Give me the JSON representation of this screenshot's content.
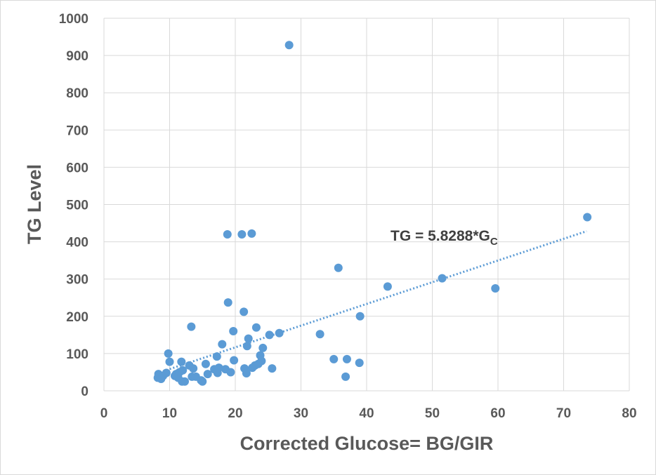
{
  "chart_data": {
    "type": "scatter",
    "title": "",
    "xlabel": "Corrected Glucose= BG/GIR",
    "ylabel": "TG Level",
    "xlim": [
      0,
      80
    ],
    "ylim": [
      0,
      1000
    ],
    "x_ticks": [
      0,
      10,
      20,
      30,
      40,
      50,
      60,
      70,
      80
    ],
    "y_ticks": [
      0,
      100,
      200,
      300,
      400,
      500,
      600,
      700,
      800,
      900,
      1000
    ],
    "grid": true,
    "legend": "none",
    "marker_color": "#5b9bd5",
    "trendline": {
      "type": "linear-through-origin",
      "slope": 5.8288,
      "x_range": [
        9,
        73.5
      ],
      "style": "dotted",
      "color": "#5b9bd5",
      "label_main": "TG = 5.8288*G",
      "label_sub": "C"
    },
    "points": [
      [
        8.2,
        35
      ],
      [
        8.3,
        45
      ],
      [
        8.7,
        32
      ],
      [
        9.0,
        40
      ],
      [
        9.5,
        48
      ],
      [
        9.8,
        100
      ],
      [
        10.0,
        78
      ],
      [
        10.8,
        40
      ],
      [
        11.0,
        45
      ],
      [
        11.3,
        35
      ],
      [
        11.5,
        50
      ],
      [
        11.8,
        78
      ],
      [
        11.9,
        25
      ],
      [
        12.0,
        55
      ],
      [
        12.3,
        25
      ],
      [
        13.0,
        68
      ],
      [
        13.3,
        172
      ],
      [
        13.4,
        38
      ],
      [
        13.6,
        60
      ],
      [
        14.0,
        38
      ],
      [
        14.8,
        28
      ],
      [
        15.0,
        25
      ],
      [
        15.5,
        72
      ],
      [
        15.8,
        45
      ],
      [
        16.8,
        58
      ],
      [
        17.2,
        92
      ],
      [
        17.3,
        48
      ],
      [
        17.5,
        62
      ],
      [
        18.0,
        125
      ],
      [
        18.5,
        58
      ],
      [
        18.8,
        420
      ],
      [
        18.9,
        237
      ],
      [
        19.3,
        50
      ],
      [
        19.7,
        160
      ],
      [
        19.8,
        82
      ],
      [
        21.0,
        420
      ],
      [
        21.3,
        212
      ],
      [
        21.4,
        60
      ],
      [
        21.7,
        47
      ],
      [
        21.8,
        120
      ],
      [
        22.0,
        140
      ],
      [
        22.5,
        422
      ],
      [
        22.6,
        62
      ],
      [
        23.0,
        68
      ],
      [
        23.2,
        170
      ],
      [
        23.5,
        72
      ],
      [
        23.8,
        95
      ],
      [
        24.0,
        80
      ],
      [
        24.2,
        115
      ],
      [
        25.2,
        150
      ],
      [
        25.6,
        60
      ],
      [
        26.7,
        155
      ],
      [
        28.2,
        928
      ],
      [
        32.9,
        152
      ],
      [
        35.0,
        85
      ],
      [
        35.7,
        330
      ],
      [
        36.8,
        38
      ],
      [
        37.0,
        85
      ],
      [
        38.9,
        75
      ],
      [
        39.0,
        200
      ],
      [
        43.2,
        280
      ],
      [
        51.5,
        302
      ],
      [
        59.6,
        275
      ],
      [
        73.6,
        466
      ]
    ]
  }
}
